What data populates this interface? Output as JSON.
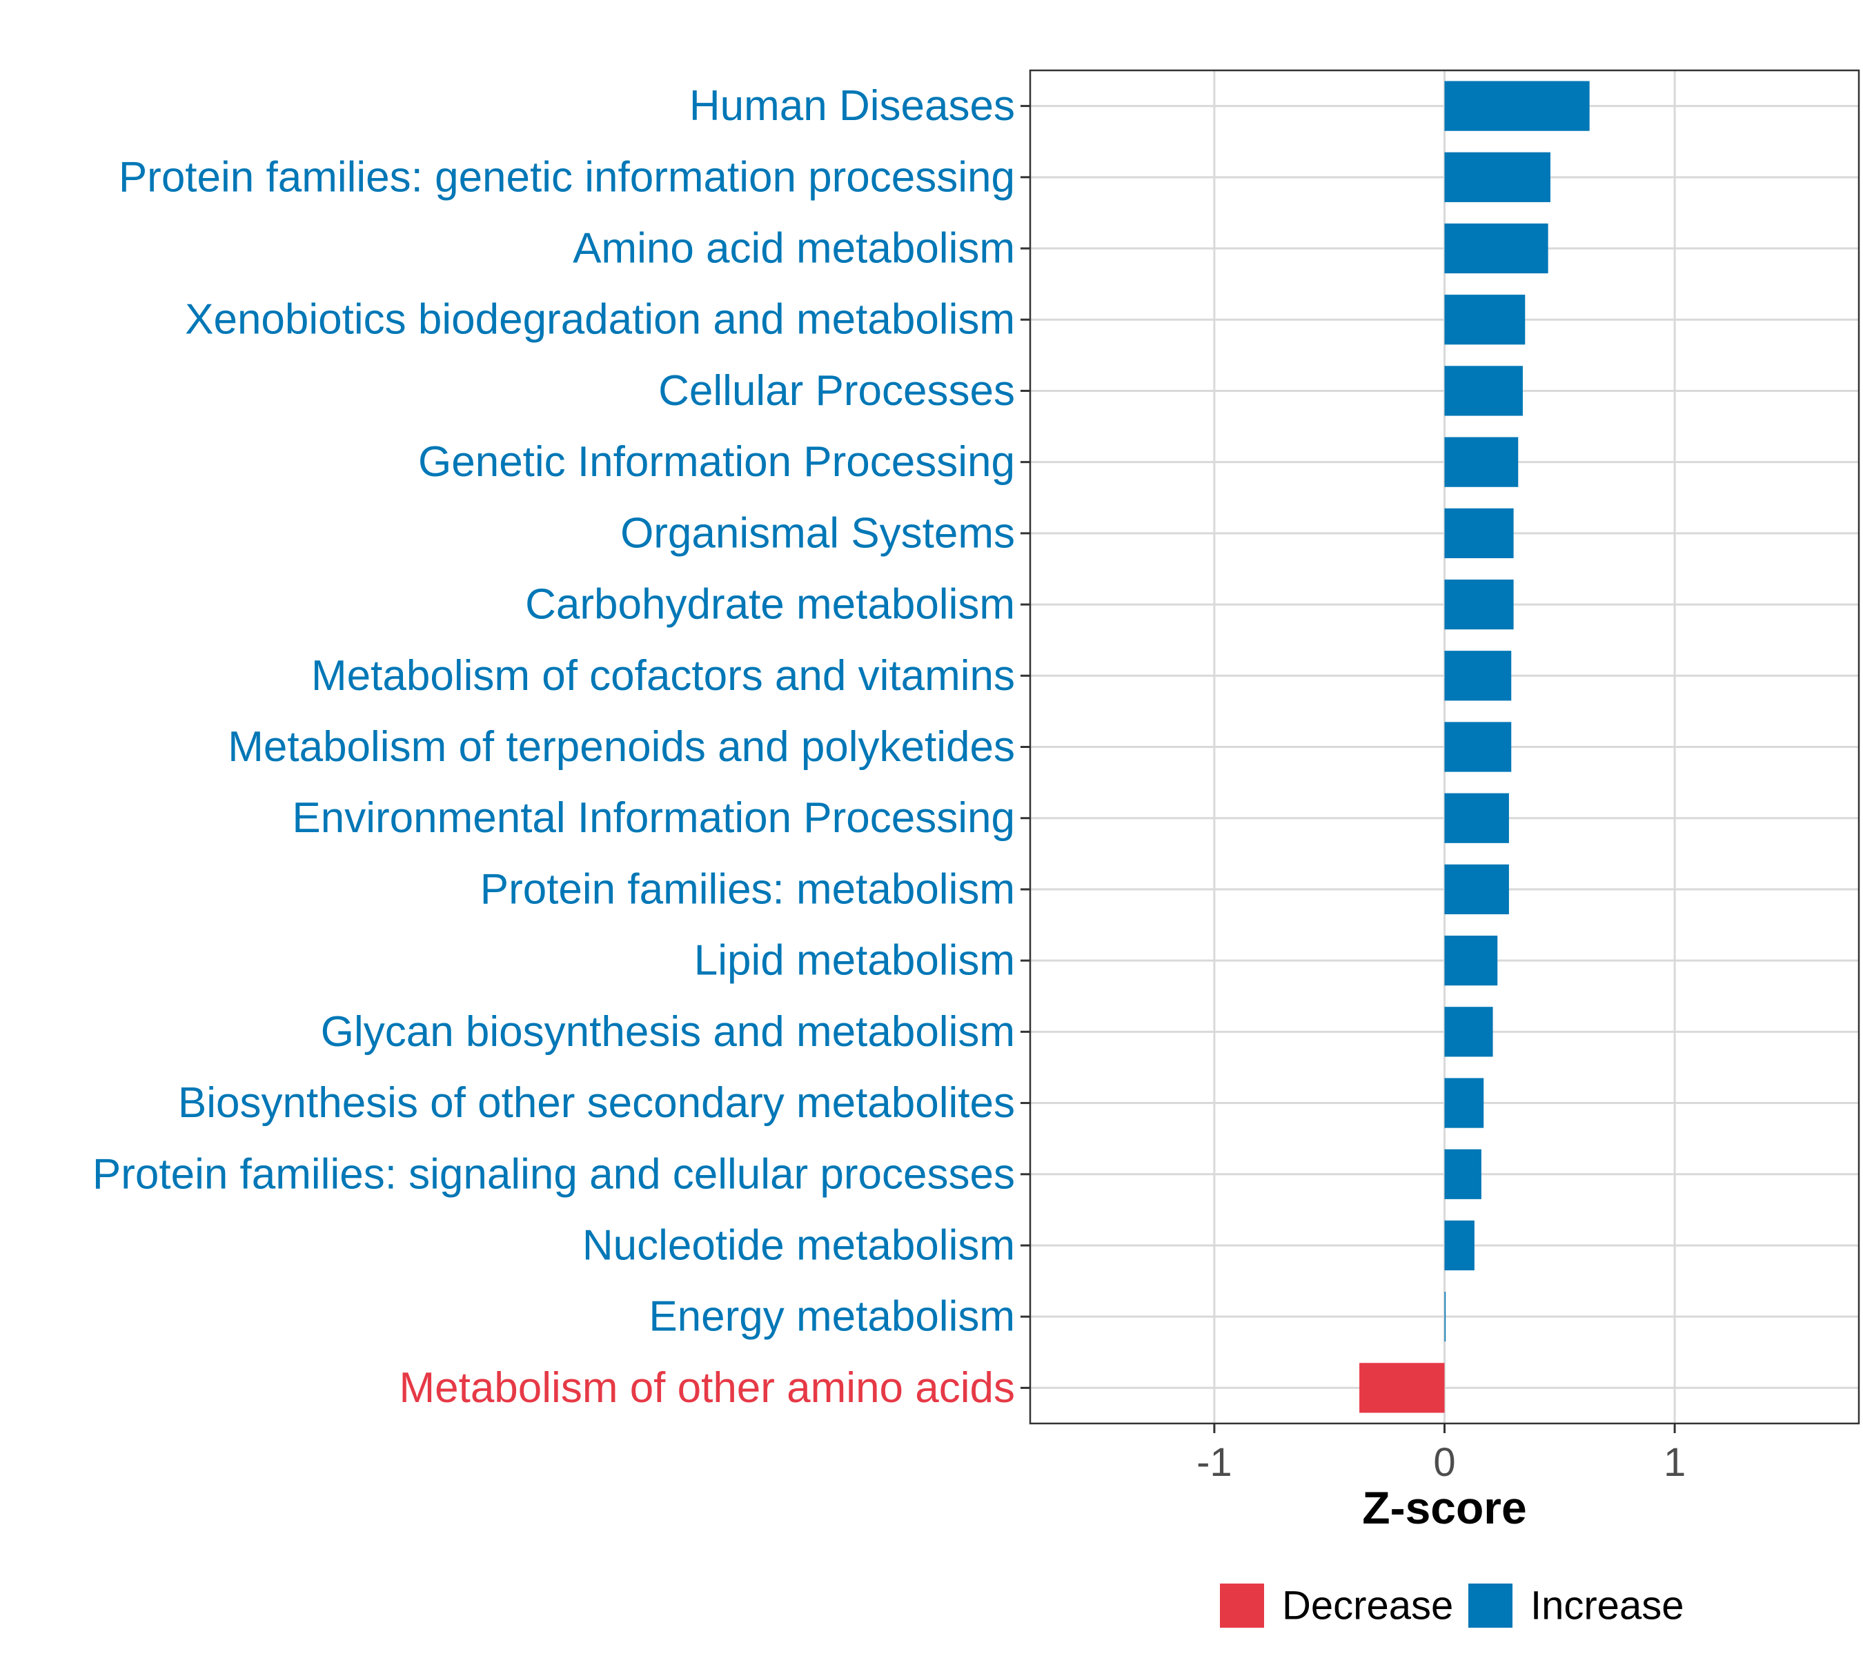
{
  "chart_data": {
    "type": "bar",
    "orientation": "horizontal",
    "title": "",
    "xlabel": "Z-score",
    "ylabel": "",
    "xlim": [
      -1.8,
      1.8
    ],
    "xticks": [
      -1,
      0,
      1
    ],
    "xtick_labels": [
      "-1",
      "0",
      "1"
    ],
    "grid": true,
    "categories": [
      "Human Diseases",
      "Protein families: genetic information processing",
      "Amino acid metabolism",
      "Xenobiotics biodegradation and metabolism",
      "Cellular Processes",
      "Genetic Information Processing",
      "Organismal Systems",
      "Carbohydrate metabolism",
      "Metabolism of cofactors and vitamins",
      "Metabolism of terpenoids and polyketides",
      "Environmental Information Processing",
      "Protein families: metabolism",
      "Lipid metabolism",
      "Glycan biosynthesis and metabolism",
      "Biosynthesis of other secondary metabolites",
      "Protein families: signaling and cellular processes",
      "Nucleotide metabolism",
      "Energy metabolism",
      "Metabolism of other amino acids"
    ],
    "values": [
      0.63,
      0.46,
      0.45,
      0.35,
      0.34,
      0.32,
      0.3,
      0.3,
      0.29,
      0.29,
      0.28,
      0.28,
      0.23,
      0.21,
      0.17,
      0.16,
      0.13,
      0.005,
      -0.37
    ],
    "groups": [
      "Increase",
      "Increase",
      "Increase",
      "Increase",
      "Increase",
      "Increase",
      "Increase",
      "Increase",
      "Increase",
      "Increase",
      "Increase",
      "Increase",
      "Increase",
      "Increase",
      "Increase",
      "Increase",
      "Increase",
      "Increase",
      "Decrease"
    ],
    "legend": {
      "position": "bottom",
      "entries": [
        {
          "label": "Decrease",
          "color": "#e63946"
        },
        {
          "label": "Increase",
          "color": "#0077b6"
        }
      ]
    },
    "colors": {
      "Decrease": "#e63946",
      "Increase": "#0077b6"
    }
  }
}
